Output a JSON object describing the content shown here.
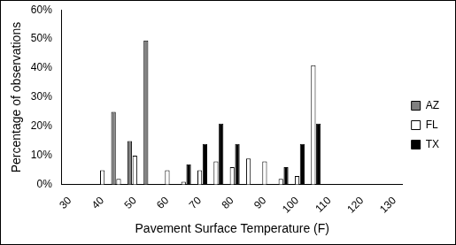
{
  "chart_data": {
    "type": "bar",
    "x_label": "Pavement Surface Temperature (F)",
    "y_label": "Percentage of observations",
    "categories": [
      30,
      null,
      40,
      null,
      50,
      null,
      60,
      null,
      70,
      null,
      80,
      null,
      90,
      null,
      100,
      null,
      110,
      null,
      120,
      null,
      130
    ],
    "series": [
      {
        "name": "AZ",
        "color": "#808080",
        "values": [
          null,
          null,
          null,
          25,
          15,
          49.5,
          null,
          null,
          null,
          null,
          null,
          null,
          null,
          null,
          null,
          null,
          null,
          null,
          null,
          null,
          null
        ]
      },
      {
        "name": "FL",
        "color": "#ffffff",
        "values": [
          null,
          null,
          5,
          2,
          10,
          null,
          5,
          1,
          5,
          8,
          6,
          9,
          8,
          2,
          3,
          41,
          null,
          null,
          null,
          null,
          null
        ]
      },
      {
        "name": "TX",
        "color": "#000000",
        "values": [
          null,
          null,
          null,
          null,
          null,
          null,
          null,
          7,
          14,
          21,
          14,
          null,
          null,
          6,
          14,
          21,
          null,
          null,
          null,
          null,
          null
        ]
      }
    ],
    "ylim": [
      0,
      60
    ],
    "yticks": [
      {
        "value": 0,
        "label": "0%"
      },
      {
        "value": 10,
        "label": "10%"
      },
      {
        "value": 20,
        "label": "20%"
      },
      {
        "value": 30,
        "label": "30%"
      },
      {
        "value": 40,
        "label": "40%"
      },
      {
        "value": 50,
        "label": "50%"
      },
      {
        "value": 60,
        "label": "60%"
      }
    ],
    "grid": false,
    "legend": "right"
  }
}
